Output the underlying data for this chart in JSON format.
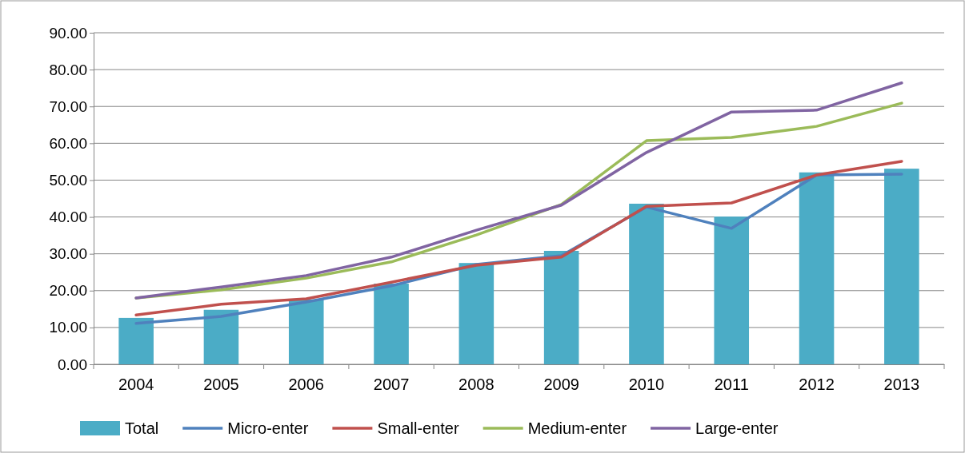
{
  "chart_data": {
    "type": "bar",
    "categories": [
      "2004",
      "2005",
      "2006",
      "2007",
      "2008",
      "2009",
      "2010",
      "2011",
      "2012",
      "2013"
    ],
    "series": [
      {
        "name": "Total",
        "color": "#4bacc6",
        "values": [
          12.6,
          14.8,
          17.6,
          21.9,
          27.5,
          30.8,
          43.6,
          40.1,
          52.1,
          53.1
        ]
      },
      {
        "name": "Micro-enter",
        "type": "line",
        "color": "#4f81bd",
        "values": [
          11.1,
          13.0,
          16.9,
          21.3,
          27.1,
          29.5,
          42.7,
          36.9,
          51.4,
          51.6
        ]
      },
      {
        "name": "Small-enter",
        "type": "line",
        "color": "#c0504d",
        "values": [
          13.4,
          16.3,
          17.8,
          22.3,
          26.9,
          29.1,
          42.9,
          43.8,
          51.4,
          55.1
        ]
      },
      {
        "name": "Medium-enter",
        "type": "line",
        "color": "#9bbb59",
        "values": [
          18.0,
          20.2,
          23.4,
          27.8,
          35.1,
          43.4,
          60.7,
          61.6,
          64.6,
          70.9
        ]
      },
      {
        "name": "Large-enter",
        "type": "line",
        "color": "#8064a2",
        "values": [
          18.0,
          21.0,
          24.1,
          29.1,
          36.4,
          43.2,
          57.5,
          68.5,
          69.0,
          76.4
        ]
      }
    ],
    "ylim": [
      0,
      90
    ],
    "yticks": [
      {
        "value": 0,
        "label": "0.00"
      },
      {
        "value": 10,
        "label": "10.00"
      },
      {
        "value": 20,
        "label": "20.00"
      },
      {
        "value": 30,
        "label": "30.00"
      },
      {
        "value": 40,
        "label": "40.00"
      },
      {
        "value": 50,
        "label": "50.00"
      },
      {
        "value": 60,
        "label": "60.00"
      },
      {
        "value": 70,
        "label": "70.00"
      },
      {
        "value": 80,
        "label": "80.00"
      },
      {
        "value": 90,
        "label": "90.00"
      }
    ],
    "grid": "y",
    "legend": "bottom",
    "marker": "none",
    "line_style": "solid"
  }
}
